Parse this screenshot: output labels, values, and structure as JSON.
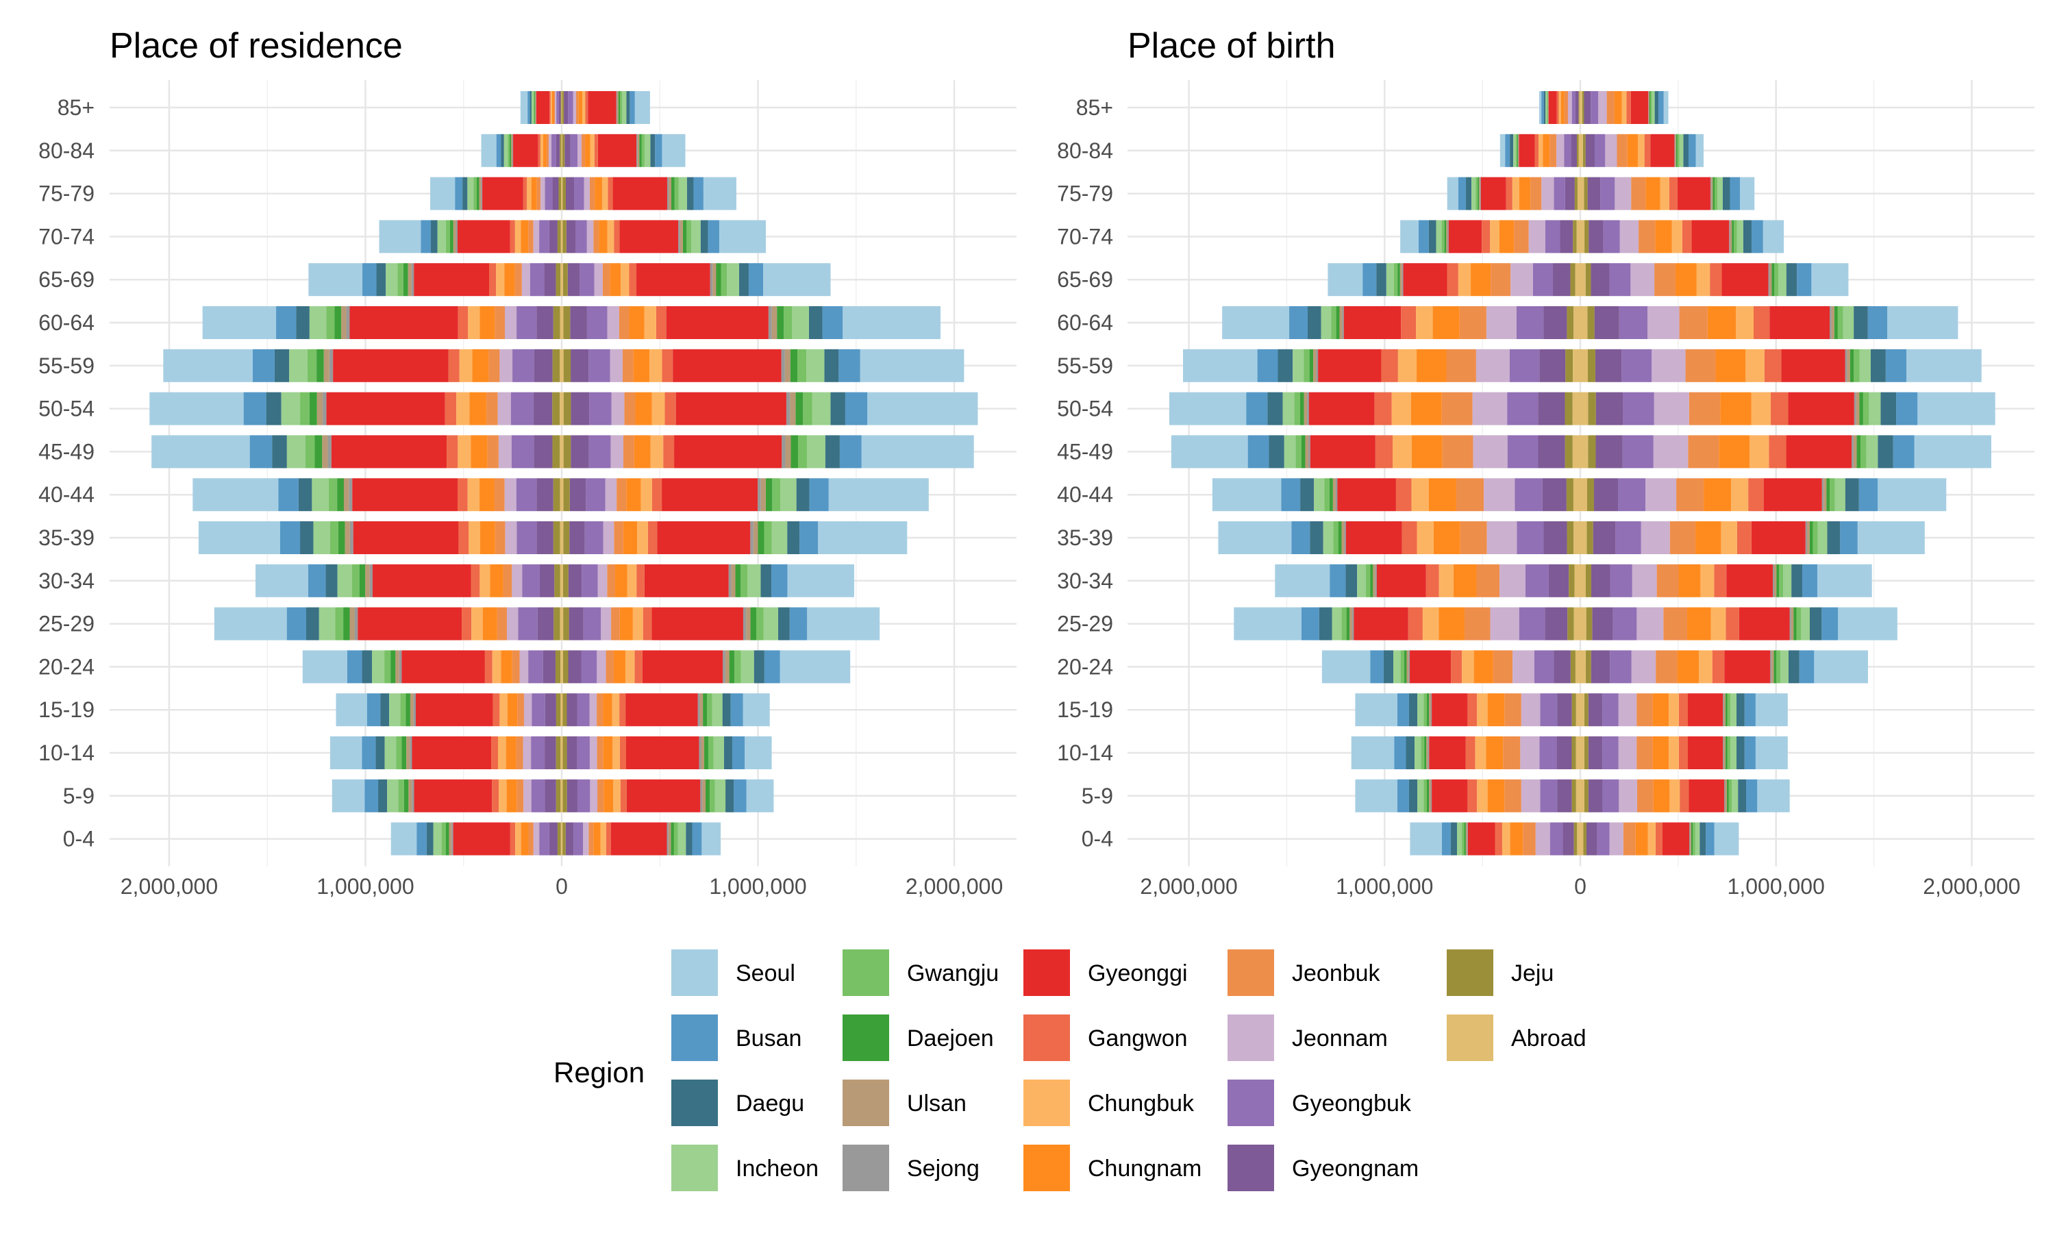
{
  "chart_data": {
    "type": "bar",
    "orientation": "horizontal",
    "layout": "mirrored-stacked (population pyramid)",
    "age_groups": [
      "0-4",
      "5-9",
      "10-14",
      "15-19",
      "20-24",
      "25-29",
      "30-34",
      "35-39",
      "40-44",
      "45-49",
      "50-54",
      "55-59",
      "60-64",
      "65-69",
      "70-74",
      "75-79",
      "80-84",
      "85+"
    ],
    "x_ticks": [
      "2,000,000",
      "1,000,000",
      "0",
      "1,000,000",
      "2,000,000"
    ],
    "x_tick_values": [
      -2000000,
      -1000000,
      0,
      1000000,
      2000000
    ],
    "xlim": [
      -2300000,
      2350000
    ],
    "legend": {
      "title": "Region",
      "position": "bottom",
      "regions": [
        {
          "name": "Seoul",
          "color": "#a6cee3"
        },
        {
          "name": "Busan",
          "color": "#5598c6"
        },
        {
          "name": "Daegu",
          "color": "#3a7185"
        },
        {
          "name": "Incheon",
          "color": "#9cd18f"
        },
        {
          "name": "Gwangju",
          "color": "#78c165"
        },
        {
          "name": "Daejoen",
          "color": "#3ca038"
        },
        {
          "name": "Ulsan",
          "color": "#b99a76"
        },
        {
          "name": "Sejong",
          "color": "#999999"
        },
        {
          "name": "Gyeonggi",
          "color": "#e52a2a"
        },
        {
          "name": "Gangwon",
          "color": "#ee6a4a"
        },
        {
          "name": "Chungbuk",
          "color": "#fdb462"
        },
        {
          "name": "Chungnam",
          "color": "#ff8b1f"
        },
        {
          "name": "Jeonbuk",
          "color": "#ee8e4b"
        },
        {
          "name": "Jeonnam",
          "color": "#cbb0cf"
        },
        {
          "name": "Gyeongbuk",
          "color": "#9170b5"
        },
        {
          "name": "Gyeongnam",
          "color": "#7e5a96"
        },
        {
          "name": "Jeju",
          "color": "#9c8f3a"
        },
        {
          "name": "Abroad",
          "color": "#e0bd70"
        }
      ]
    },
    "panels": [
      {
        "title": "Place of residence",
        "left_total": [
          870000,
          1170000,
          1180000,
          1150000,
          1320000,
          1770000,
          1560000,
          1850000,
          1880000,
          2090000,
          2100000,
          2030000,
          1830000,
          1290000,
          930000,
          670000,
          410000,
          210000
        ],
        "right_total": [
          810000,
          1080000,
          1070000,
          1060000,
          1470000,
          1620000,
          1490000,
          1760000,
          1870000,
          2100000,
          2120000,
          2050000,
          1930000,
          1370000,
          1040000,
          890000,
          630000,
          450000
        ],
        "left_shares": [
          0.155,
          0.145,
          0.14,
          0.14,
          0.18,
          0.225,
          0.18,
          0.245,
          0.255,
          0.265,
          0.25,
          0.245,
          0.22,
          0.23,
          0.25,
          0.2,
          0.2,
          0.18
        ],
        "right_shares": [
          0.12,
          0.13,
          0.13,
          0.13,
          0.27,
          0.25,
          0.25,
          0.29,
          0.31,
          0.31,
          0.3,
          0.29,
          0.29,
          0.28,
          0.25,
          0.2,
          0.2,
          0.18
        ]
      },
      {
        "title": "Place of birth",
        "left_total": [
          870000,
          1150000,
          1170000,
          1150000,
          1320000,
          1770000,
          1560000,
          1850000,
          1880000,
          2090000,
          2100000,
          2030000,
          1830000,
          1290000,
          920000,
          680000,
          410000,
          210000
        ],
        "right_total": [
          810000,
          1070000,
          1060000,
          1060000,
          1470000,
          1620000,
          1490000,
          1760000,
          1870000,
          2100000,
          2120000,
          2050000,
          1930000,
          1370000,
          1040000,
          890000,
          630000,
          450000
        ],
        "left_shares": [
          0.2,
          0.2,
          0.2,
          0.2,
          0.2,
          0.21,
          0.19,
          0.22,
          0.2,
          0.2,
          0.2,
          0.2,
          0.2,
          0.14,
          0.1,
          0.08,
          0.06,
          0.05
        ],
        "right_shares": [
          0.16,
          0.16,
          0.16,
          0.16,
          0.2,
          0.2,
          0.2,
          0.21,
          0.2,
          0.2,
          0.2,
          0.2,
          0.2,
          0.14,
          0.1,
          0.08,
          0.06,
          0.05
        ]
      }
    ]
  }
}
